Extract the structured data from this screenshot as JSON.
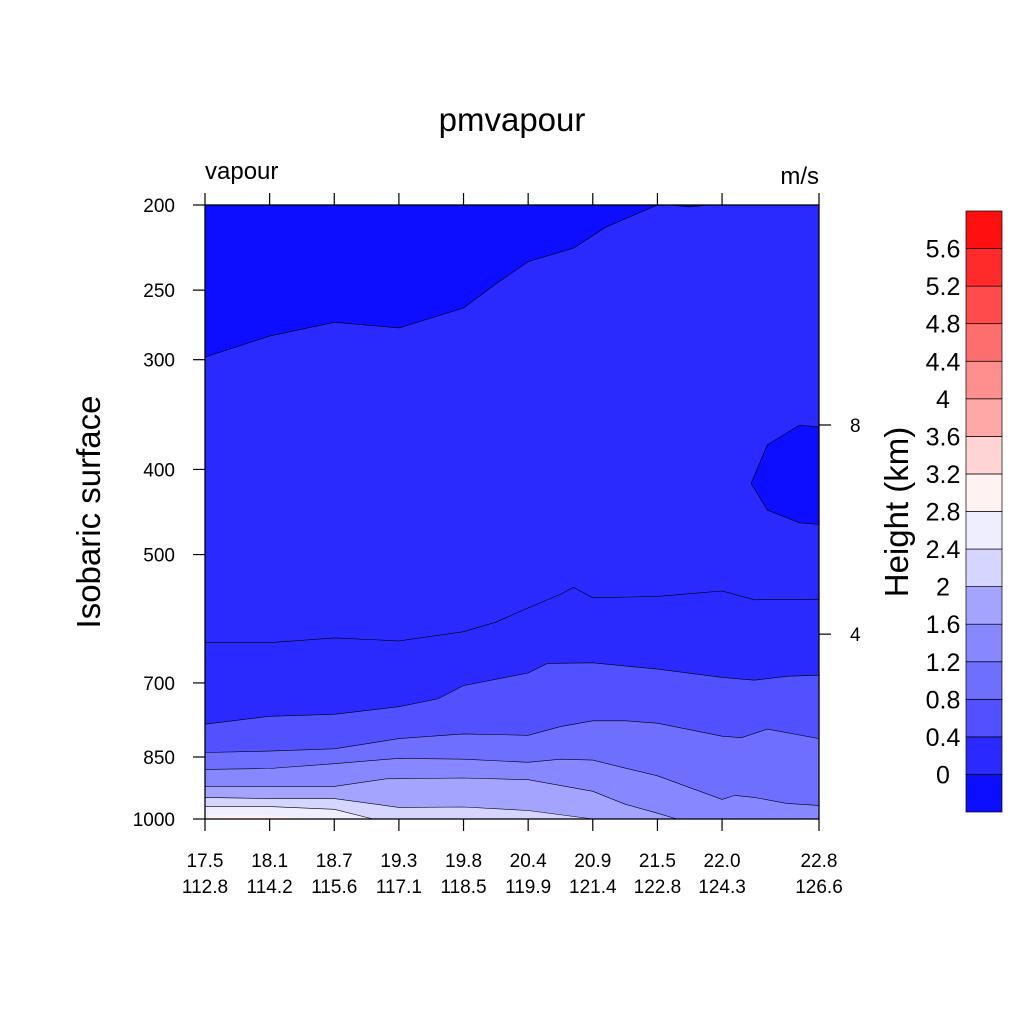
{
  "chart_data": {
    "type": "heatmap",
    "title": "pmvapour",
    "left_string": "vapour",
    "right_string": "m/s",
    "ylabel": "Isobaric surface",
    "colorbar_label": "Height (km)",
    "x_ticks": [
      {
        "lat": "17.5",
        "lon": "112.8"
      },
      {
        "lat": "18.1",
        "lon": "114.2"
      },
      {
        "lat": "18.7",
        "lon": "115.6"
      },
      {
        "lat": "19.3",
        "lon": "117.1"
      },
      {
        "lat": "19.8",
        "lon": "118.5"
      },
      {
        "lat": "20.4",
        "lon": "119.9"
      },
      {
        "lat": "20.9",
        "lon": "121.4"
      },
      {
        "lat": "21.5",
        "lon": "122.8"
      },
      {
        "lat": "22.0",
        "lon": "124.3"
      },
      {
        "lat": "22.8",
        "lon": "126.6"
      }
    ],
    "x_tick_positions": [
      0,
      1,
      2,
      3,
      4,
      5,
      6,
      7,
      8,
      9.5
    ],
    "x_range": [
      0,
      9.5
    ],
    "y_ticks": [
      200,
      250,
      300,
      400,
      500,
      700,
      850,
      1000
    ],
    "y_range_hpa": [
      1000,
      200
    ],
    "y_scale": "log",
    "right_axis_ticks": [
      {
        "label": "8",
        "pressure": 356
      },
      {
        "label": "4",
        "pressure": 616
      }
    ],
    "colorbar_levels": [
      "0",
      "0.4",
      "0.8",
      "1.2",
      "1.6",
      "2",
      "2.4",
      "2.8",
      "3.2",
      "3.6",
      "4",
      "4.4",
      "4.8",
      "5.2",
      "5.6"
    ],
    "colorbar_colors": [
      "#0d0dff",
      "#2a2aff",
      "#5151ff",
      "#6e6eff",
      "#8787ff",
      "#a4a4ff",
      "#d5d5ff",
      "#eeeeff",
      "#fff2f2",
      "#ffd4d4",
      "#ffa8a8",
      "#ff8f8f",
      "#ff6e6e",
      "#ff4b4b",
      "#ff2a2a",
      "#ff0f0f"
    ],
    "contour_bands": [
      {
        "value": 0.0,
        "color": "#0d0dff",
        "boundary": [
          [
            0,
            200
          ],
          [
            0,
            298
          ],
          [
            1,
            282
          ],
          [
            2,
            272
          ],
          [
            3,
            276
          ],
          [
            4,
            262
          ],
          [
            4.5,
            246
          ],
          [
            5,
            232
          ],
          [
            5.7,
            224
          ],
          [
            6.2,
            212
          ],
          [
            7,
            200
          ]
        ]
      },
      {
        "value": 0.0,
        "color": "#0d0dff",
        "boundary": [
          [
            7.2,
            200
          ],
          [
            7.5,
            201
          ],
          [
            7.8,
            200
          ]
        ]
      },
      {
        "value": 0.0,
        "color": "#0d0dff",
        "boundary": [
          [
            9.5,
            358
          ],
          [
            9.2,
            356
          ],
          [
            8.7,
            375
          ],
          [
            8.45,
            415
          ],
          [
            8.7,
            445
          ],
          [
            9.2,
            460
          ],
          [
            9.5,
            462
          ]
        ]
      },
      {
        "value": 0.4,
        "color": "#2a2aff",
        "boundary": [
          [
            0,
            630
          ],
          [
            1,
            630
          ],
          [
            2,
            622
          ],
          [
            3,
            627
          ],
          [
            4,
            612
          ],
          [
            4.5,
            597
          ],
          [
            5,
            575
          ],
          [
            5.5,
            555
          ],
          [
            5.7,
            545
          ],
          [
            6,
            560
          ],
          [
            7,
            558
          ],
          [
            8,
            550
          ],
          [
            8.5,
            563
          ],
          [
            9.5,
            562
          ]
        ]
      },
      {
        "value": 0.8,
        "color": "#5151ff",
        "boundary": [
          [
            0,
            780
          ],
          [
            1,
            764
          ],
          [
            2,
            760
          ],
          [
            3,
            745
          ],
          [
            3.6,
            730
          ],
          [
            4,
            705
          ],
          [
            5,
            682
          ],
          [
            5.3,
            665
          ],
          [
            6,
            664
          ],
          [
            7,
            675
          ],
          [
            8,
            690
          ],
          [
            8.5,
            695
          ],
          [
            9,
            688
          ],
          [
            9.5,
            686
          ]
        ]
      },
      {
        "value": 1.2,
        "color": "#6e6eff",
        "boundary": [
          [
            0,
            840
          ],
          [
            1,
            837
          ],
          [
            2,
            832
          ],
          [
            3,
            810
          ],
          [
            4,
            800
          ],
          [
            5,
            803
          ],
          [
            5.5,
            785
          ],
          [
            6,
            773
          ],
          [
            6.5,
            773
          ],
          [
            7,
            778
          ],
          [
            8,
            805
          ],
          [
            8.3,
            808
          ],
          [
            8.7,
            790
          ],
          [
            9.5,
            810
          ]
        ]
      },
      {
        "value": 1.6,
        "color": "#8787ff",
        "boundary": [
          [
            0,
            878
          ],
          [
            1,
            876
          ],
          [
            2,
            865
          ],
          [
            3,
            853
          ],
          [
            4,
            855
          ],
          [
            5,
            862
          ],
          [
            5.5,
            855
          ],
          [
            6,
            857
          ],
          [
            6.5,
            875
          ],
          [
            7,
            893
          ],
          [
            8,
            950
          ],
          [
            8.2,
            940
          ],
          [
            8.5,
            945
          ],
          [
            9,
            960
          ],
          [
            9.5,
            965
          ]
        ]
      },
      {
        "value": 2.0,
        "color": "#a4a4ff",
        "boundary": [
          [
            0,
            918
          ],
          [
            1,
            918
          ],
          [
            2,
            918
          ],
          [
            2.8,
            900
          ],
          [
            4,
            898
          ],
          [
            5,
            902
          ],
          [
            6,
            930
          ],
          [
            6.5,
            962
          ],
          [
            7,
            985
          ],
          [
            7.3,
            1000
          ]
        ]
      },
      {
        "value": 2.4,
        "color": "#d5d5ff",
        "boundary": [
          [
            0,
            945
          ],
          [
            1,
            948
          ],
          [
            2,
            948
          ],
          [
            3,
            970
          ],
          [
            4,
            969
          ],
          [
            5,
            978
          ],
          [
            6,
            1000
          ]
        ]
      },
      {
        "value": 2.8,
        "color": "#eeeeff",
        "boundary": [
          [
            0,
            968
          ],
          [
            1,
            968
          ],
          [
            2,
            975
          ],
          [
            2.6,
            1000
          ]
        ]
      }
    ]
  }
}
